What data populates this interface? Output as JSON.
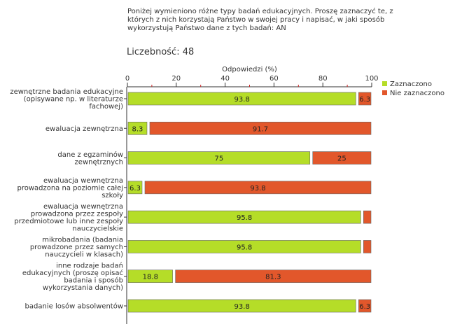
{
  "question": "Poniżej wymieniono różne typy badań edukacyjnych. Proszę zaznaczyć te, z\nktórych z nich korzystają Państwo w swojej pracy i napisać, w jaki sposób\nwykorzystują Państwo dane z tych badań:  AN",
  "count_label": "Liczebność: 48",
  "colors": {
    "zaznaczono": "#b5dd28",
    "nie_zaznaczono": "#e2572b",
    "axis": "#333333",
    "tick_minor": "#cc2222"
  },
  "chart_data": {
    "type": "bar",
    "orientation": "horizontal",
    "stacked": true,
    "title": "Odpowiedzi (%)",
    "xlabel": "Odpowiedzi (%)",
    "ylabel": "",
    "xlim": [
      0,
      100
    ],
    "ticks": [
      0,
      20,
      40,
      60,
      80,
      100
    ],
    "legend_position": "right",
    "categories": [
      [
        "zewnętrzne badania edukacyjne",
        "(opisywane np. w literaturze",
        "fachowej)"
      ],
      [
        "ewaluacja zewnętrzna"
      ],
      [
        "dane z egzaminów",
        "zewnętrznych"
      ],
      [
        "ewaluacja wewnętrzna",
        "prowadzona na poziomie całej",
        "szkoły"
      ],
      [
        "ewaluacja wewnętrzna",
        "prowadzona przez zespoły",
        "przedmiotowe lub inne zespoły",
        "nauczycielskie"
      ],
      [
        "mikrobadania (badania",
        "prowadzone przez samych",
        "nauczycieli w klasach)"
      ],
      [
        "inne rodzaje badań",
        "edukacyjnych (proszę opisać",
        "badania i sposób",
        "wykorzystania danych)"
      ],
      [
        "badanie losów absolwentów"
      ]
    ],
    "series": [
      {
        "name": "Zaznaczono",
        "values": [
          93.8,
          8.3,
          75,
          6.3,
          95.8,
          95.8,
          18.8,
          93.8
        ],
        "labels": [
          "93.8",
          "8.3",
          "75",
          "6.3",
          "95.8",
          "95.8",
          "18.8",
          "93.8"
        ]
      },
      {
        "name": "Nie zaznaczono",
        "values": [
          6.3,
          91.7,
          25,
          93.8,
          4.2,
          4.2,
          81.3,
          6.3
        ],
        "labels": [
          "6.3",
          "91.7",
          "25",
          "93.8",
          "",
          "",
          "81.3",
          "6.3"
        ]
      }
    ]
  }
}
